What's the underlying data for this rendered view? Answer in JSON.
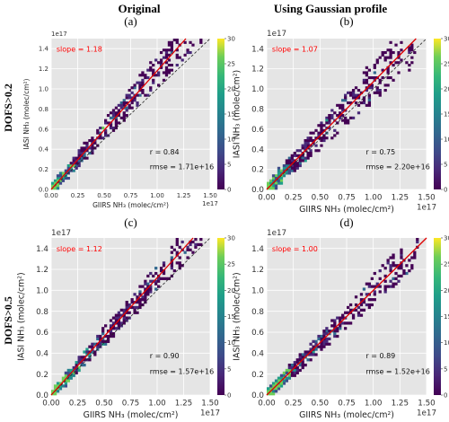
{
  "columns": [
    "Original",
    "Using Gaussian profile"
  ],
  "rows": [
    "DOFS>0.2",
    "DOFS>0.5"
  ],
  "colorbar": {
    "min": 0,
    "max": 30,
    "ticks": [
      "0",
      "5",
      "10",
      "15",
      "20",
      "25",
      "30"
    ]
  },
  "colors": {
    "background": "#e5e5e5",
    "fit_line": "#e00000",
    "one_to_one": "#222222",
    "slope_text": "#ff0000"
  },
  "chart_data": [
    {
      "type": "heatmap",
      "panel_label": "(a)",
      "slope_text": "slope = 1.18",
      "r_text": "r = 0.84",
      "rmse_text": "rmse = 1.71e+16",
      "xlabel": "GIIRS NH₃ (molec/cm²)",
      "ylabel": "IASI NH₃ (molec/cm²)",
      "x_multiplier": "1e17",
      "y_multiplier": "1e17",
      "xlim": [
        0,
        1.5
      ],
      "ylim": [
        0,
        1.5
      ],
      "xticks": [
        "0.00",
        "0.25",
        "0.50",
        "0.75",
        "1.00",
        "1.25",
        "1.50"
      ],
      "yticks": [
        "0.0",
        "0.2",
        "0.4",
        "0.6",
        "0.8",
        "1.0",
        "1.2",
        "1.4"
      ],
      "fit_slope": 1.18,
      "r": 0.84,
      "rmse": 1.71e+16
    },
    {
      "type": "heatmap",
      "panel_label": "(b)",
      "slope_text": "slope = 1.07",
      "r_text": "r = 0.75",
      "rmse_text": "rmse = 2.20e+16",
      "xlabel": "GIIRS NH₃ (molec/cm²)",
      "ylabel": "IASI NH₃ (molec/cm²)",
      "x_multiplier": "1e17",
      "y_multiplier": "1e17",
      "xlim": [
        0,
        1.5
      ],
      "ylim": [
        0,
        1.5
      ],
      "xticks": [
        "0.00",
        "0.25",
        "0.50",
        "0.75",
        "1.00",
        "1.25",
        "1.50"
      ],
      "yticks": [
        "0.0",
        "0.2",
        "0.4",
        "0.6",
        "0.8",
        "1.0",
        "1.2",
        "1.4"
      ],
      "fit_slope": 1.07,
      "r": 0.75,
      "rmse": 2.2e+16
    },
    {
      "type": "heatmap",
      "panel_label": "(c)",
      "slope_text": "slope = 1.12",
      "r_text": "r = 0.90",
      "rmse_text": "rmse = 1.57e+16",
      "xlabel": "GIIRS NH₃ (molec/cm²)",
      "ylabel": "IASI NH₃ (molec/cm²)",
      "x_multiplier": "1e17",
      "y_multiplier": "1e17",
      "xlim": [
        0,
        1.5
      ],
      "ylim": [
        0,
        1.5
      ],
      "xticks": [
        "0.00",
        "0.25",
        "0.50",
        "0.75",
        "1.00",
        "1.25",
        "1.50"
      ],
      "yticks": [
        "0.0",
        "0.2",
        "0.4",
        "0.6",
        "0.8",
        "1.0",
        "1.2",
        "1.4"
      ],
      "fit_slope": 1.12,
      "r": 0.9,
      "rmse": 1.57e+16
    },
    {
      "type": "heatmap",
      "panel_label": "(d)",
      "slope_text": "slope = 1.00",
      "r_text": "r = 0.89",
      "rmse_text": "rmse = 1.52e+16",
      "xlabel": "GIIRS NH₃ (molec/cm²)",
      "ylabel": "IASI NH₃ (molec/cm²)",
      "x_multiplier": "1e17",
      "y_multiplier": "1e17",
      "xlim": [
        0,
        1.5
      ],
      "ylim": [
        0,
        1.5
      ],
      "xticks": [
        "0.00",
        "0.25",
        "0.50",
        "0.75",
        "1.00",
        "1.25",
        "1.50"
      ],
      "yticks": [
        "0.0",
        "0.2",
        "0.4",
        "0.6",
        "0.8",
        "1.0",
        "1.2",
        "1.4"
      ],
      "fit_slope": 1.0,
      "r": 0.89,
      "rmse": 1.52e+16
    }
  ]
}
